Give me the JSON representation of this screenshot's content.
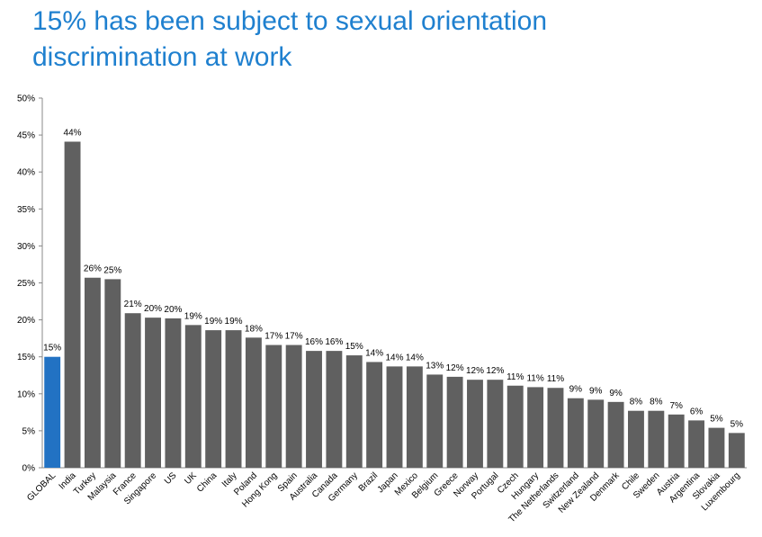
{
  "title_line1": "15% has been subject to sexual orientation",
  "title_line2": "discrimination at work",
  "chart_data": {
    "type": "bar",
    "ylim": [
      0,
      50
    ],
    "yticks": [
      "0%",
      "5%",
      "10%",
      "15%",
      "20%",
      "25%",
      "30%",
      "35%",
      "40%",
      "45%",
      "50%"
    ],
    "grid": false,
    "categories": [
      "GLOBAL",
      "India",
      "Turkey",
      "Malaysia",
      "France",
      "Singapore",
      "US",
      "UK",
      "China",
      "Italy",
      "Poland",
      "Hong Kong",
      "Spain",
      "Australia",
      "Canada",
      "Germany",
      "Brazil",
      "Japan",
      "Mexico",
      "Belgium",
      "Greece",
      "Norway",
      "Portugal",
      "Czech",
      "Hungary",
      "The Netherlands",
      "Switzerland",
      "New Zealand",
      "Denmark",
      "Chile",
      "Sweden",
      "Austria",
      "Argentina",
      "Slovakia",
      "Luxembourg"
    ],
    "values": [
      15,
      44.1,
      25.7,
      25.5,
      20.9,
      20.3,
      20.2,
      19.3,
      18.6,
      18.6,
      17.6,
      16.6,
      16.6,
      15.8,
      15.8,
      15.2,
      14.3,
      13.7,
      13.7,
      12.6,
      12.3,
      11.9,
      11.9,
      11.1,
      10.9,
      10.8,
      9.4,
      9.2,
      8.9,
      7.7,
      7.7,
      7.2,
      6.4,
      5.4,
      4.7
    ],
    "data_labels": [
      "15%",
      "44%",
      "26%",
      "25%",
      "21%",
      "20%",
      "20%",
      "19%",
      "19%",
      "19%",
      "18%",
      "17%",
      "17%",
      "16%",
      "16%",
      "15%",
      "14%",
      "14%",
      "14%",
      "13%",
      "12%",
      "12%",
      "12%",
      "11%",
      "11%",
      "11%",
      "9%",
      "9%",
      "9%",
      "8%",
      "8%",
      "7%",
      "6%",
      "5%",
      "5%"
    ],
    "colors": {
      "highlight": "#2272c3",
      "bar": "#606060"
    }
  }
}
